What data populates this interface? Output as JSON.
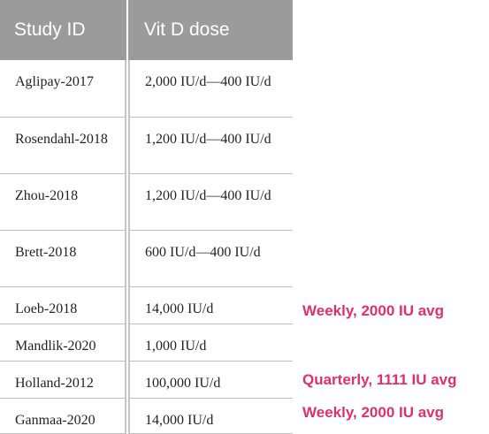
{
  "table": {
    "headers": [
      "Study ID",
      "Vit D dose"
    ],
    "rows": [
      {
        "study_id": "Aglipay-2017",
        "dose": "2,000 IU/d—400 IU/d"
      },
      {
        "study_id": "Rosendahl-2018",
        "dose": "1,200 IU/d—400 IU/d"
      },
      {
        "study_id": "Zhou-2018",
        "dose": "1,200 IU/d—400 IU/d"
      },
      {
        "study_id": "Brett-2018",
        "dose": "600 IU/d—400 IU/d"
      },
      {
        "study_id": "Loeb-2018",
        "dose": "14,000 IU/d"
      },
      {
        "study_id": "Mandlik-2020",
        "dose": "1,000 IU/d"
      },
      {
        "study_id": "Holland-2012",
        "dose": "100,000 IU/d"
      },
      {
        "study_id": "Ganmaa-2020",
        "dose": "14,000 IU/d"
      }
    ]
  },
  "annotations": {
    "loeb": "Weekly, 2000 IU avg",
    "holland": "Quarterly, 1111 IU avg",
    "ganmaa": "Weekly, 2000 IU avg"
  },
  "colors": {
    "header_bg": "#9b9b9b",
    "annotation": "#e0306a"
  }
}
